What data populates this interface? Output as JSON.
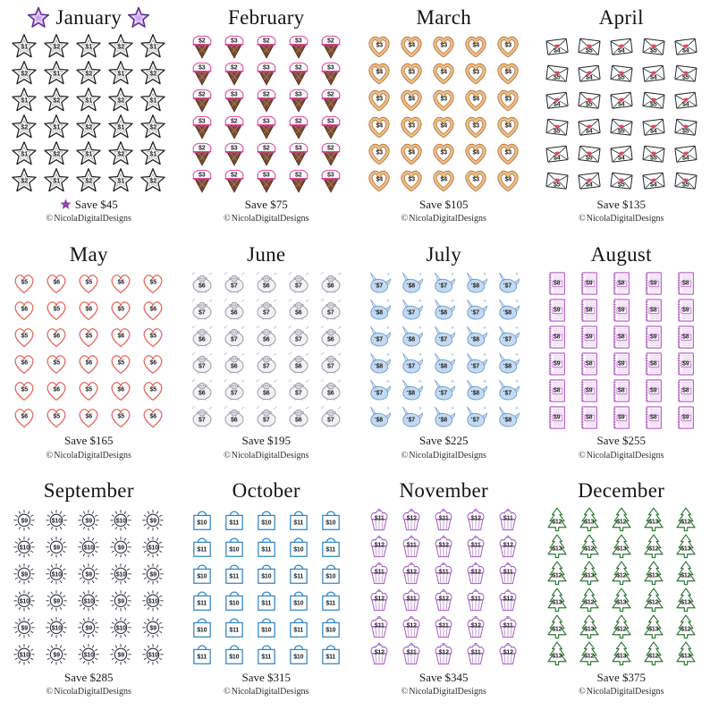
{
  "watermark": {
    "symbol": "©",
    "text": "NicolaDigitalDesigns"
  },
  "grid": {
    "columns": 5,
    "rows": 6,
    "pattern": "checkerboard"
  },
  "months": [
    {
      "name": "January",
      "icon": "star",
      "low": "$1",
      "high": "$2",
      "save_label": "Save $45",
      "title_decorated": true,
      "decor": {
        "fill": "#cda5ee",
        "stroke": "#5b2d8e",
        "save_star": "#8e44ad"
      },
      "colors": {
        "stroke": "#1f1f1f"
      }
    },
    {
      "name": "February",
      "icon": "ice-cream",
      "low": "$2",
      "high": "$3",
      "save_label": "Save $75",
      "colors": {
        "stroke": "#e0479e",
        "cone": "#7b4a2e",
        "cone_edge": "#4a2c18"
      }
    },
    {
      "name": "March",
      "icon": "heart-cookie",
      "low": "$3",
      "high": "$4",
      "save_label": "Save $105",
      "colors": {
        "stroke": "#b5713a",
        "band": "#ecc089"
      }
    },
    {
      "name": "April",
      "icon": "envelope",
      "low": "$4",
      "high": "$5",
      "save_label": "Save $135",
      "colors": {
        "stroke": "#262626",
        "heart": "#e0485c"
      }
    },
    {
      "name": "May",
      "icon": "heart",
      "low": "$5",
      "high": "$6",
      "save_label": "Save $165",
      "colors": {
        "stroke": "#e8635c"
      }
    },
    {
      "name": "June",
      "icon": "sheep",
      "low": "$6",
      "high": "$7",
      "save_label": "Save $195",
      "colors": {
        "stroke": "#94949f",
        "body": "#f2f2f6",
        "head": "#d9d9e3"
      }
    },
    {
      "name": "July",
      "icon": "narwhal",
      "low": "$7",
      "high": "$8",
      "save_label": "Save $225",
      "colors": {
        "stroke": "#6a9cd0",
        "body": "#c4daf1",
        "horn": "#e9eff8"
      }
    },
    {
      "name": "August",
      "icon": "notebook",
      "low": "$8",
      "high": "$9",
      "save_label": "Save $255",
      "colors": {
        "stroke": "#b34fc5",
        "lines": "#d9a6e3"
      }
    },
    {
      "name": "September",
      "icon": "sun",
      "low": "$9",
      "high": "$10",
      "save_label": "Save $285",
      "colors": {
        "stroke": "#2c3042"
      }
    },
    {
      "name": "October",
      "icon": "bag",
      "low": "$10",
      "high": "$11",
      "save_label": "Save $315",
      "colors": {
        "stroke": "#2f86c8"
      }
    },
    {
      "name": "November",
      "icon": "cupcake",
      "low": "$11",
      "high": "$12",
      "save_label": "Save $345",
      "colors": {
        "stroke": "#a55bc0",
        "accent": "#e3c6ee"
      }
    },
    {
      "name": "December",
      "icon": "tree",
      "low": "$12",
      "high": "$13",
      "save_label": "Save $375",
      "colors": {
        "stroke": "#2d7a35"
      }
    }
  ]
}
